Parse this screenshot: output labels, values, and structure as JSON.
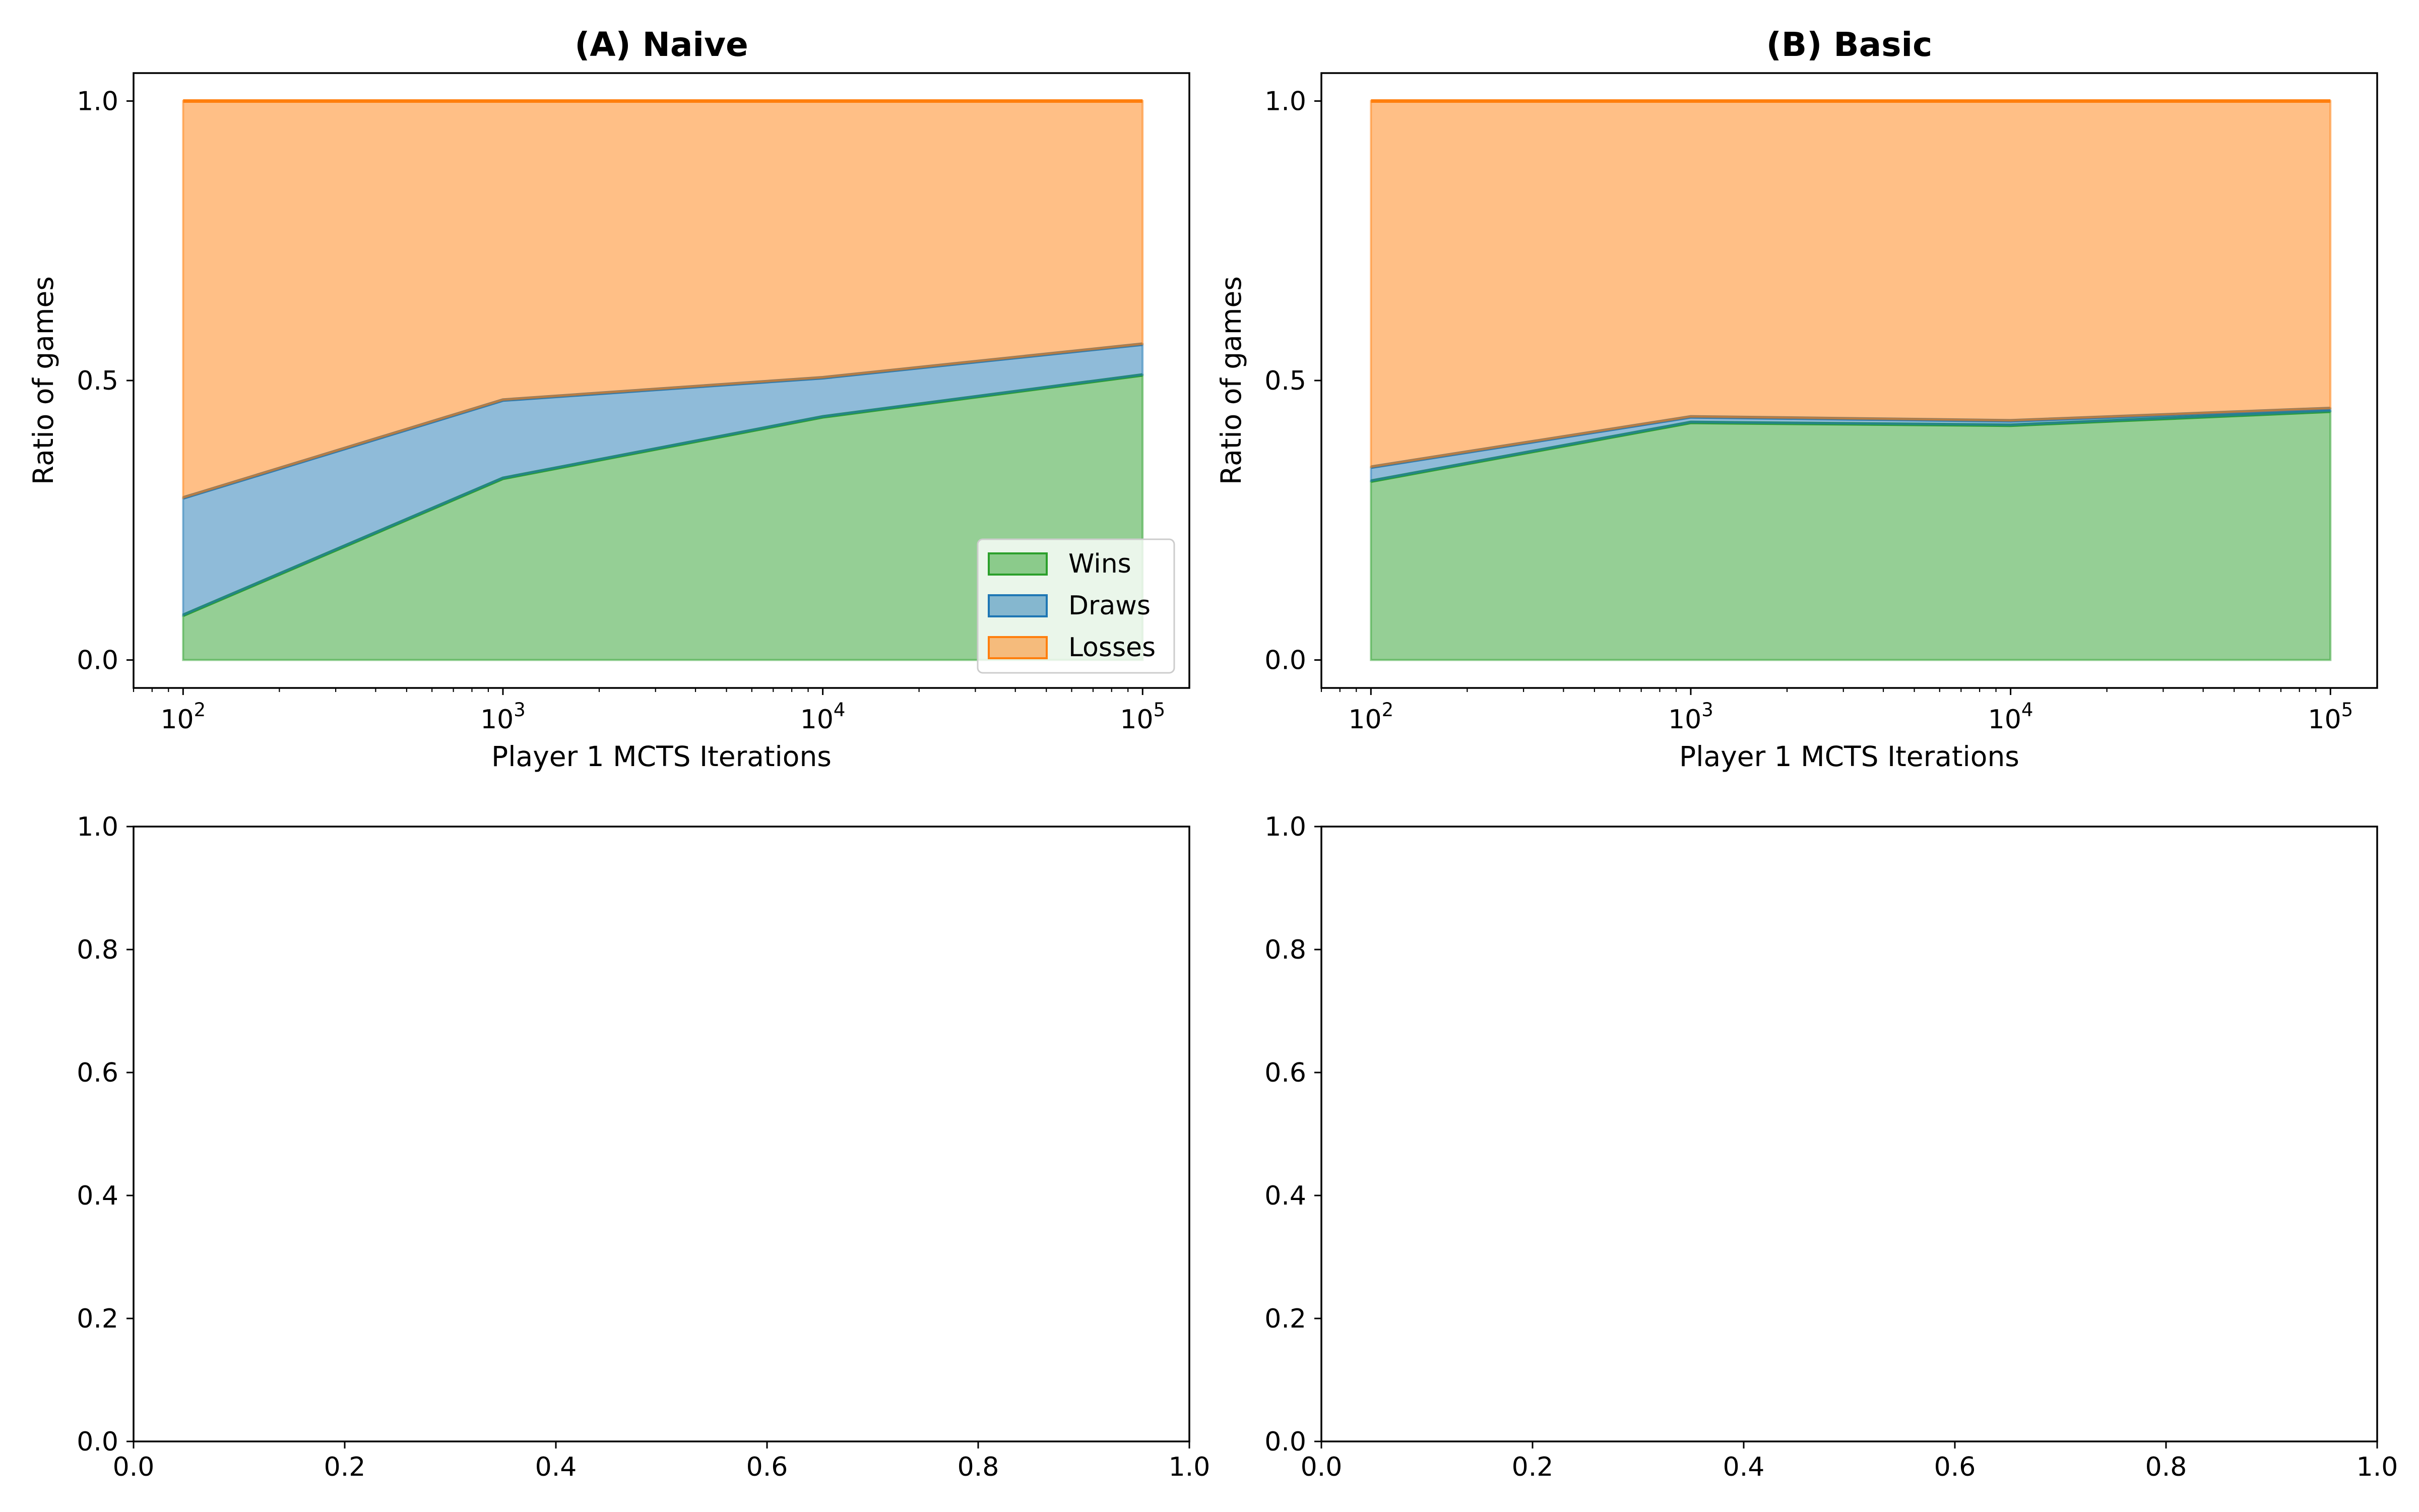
{
  "colors": {
    "wins": "#2ca02c",
    "draws": "#1f77b4",
    "losses": "#ff7f0e"
  },
  "chart_data": [
    {
      "type": "area",
      "title": "(A) Naive",
      "xlabel": "Player 1 MCTS Iterations",
      "ylabel": "Ratio of games",
      "xscale": "log",
      "xlim": [
        70,
        140000
      ],
      "ylim": [
        -0.05,
        1.05
      ],
      "x": [
        100,
        1000,
        10000,
        100000
      ],
      "x_tick_labels": [
        {
          "value": 100,
          "base": "10",
          "exp": "2"
        },
        {
          "value": 1000,
          "base": "10",
          "exp": "3"
        },
        {
          "value": 10000,
          "base": "10",
          "exp": "4"
        },
        {
          "value": 100000,
          "base": "10",
          "exp": "5"
        }
      ],
      "y_ticks": [
        0.0,
        0.5,
        1.0
      ],
      "y_tick_labels": [
        "0.0",
        "0.5",
        "1.0"
      ],
      "stacked": true,
      "series": [
        {
          "name": "Wins",
          "values": [
            0.08,
            0.325,
            0.435,
            0.51
          ]
        },
        {
          "name": "Draws",
          "values": [
            0.21,
            0.14,
            0.07,
            0.055
          ]
        },
        {
          "name": "Losses",
          "values": [
            0.71,
            0.535,
            0.495,
            0.435
          ]
        }
      ],
      "legend": {
        "location": "lower right",
        "entries": [
          "Wins",
          "Draws",
          "Losses"
        ]
      },
      "grid": false
    },
    {
      "type": "area",
      "title": "(B) Basic",
      "xlabel": "Player 1 MCTS Iterations",
      "ylabel": "Ratio of games",
      "xscale": "log",
      "xlim": [
        70,
        140000
      ],
      "ylim": [
        -0.05,
        1.05
      ],
      "x": [
        100,
        1000,
        10000,
        100000
      ],
      "x_tick_labels": [
        {
          "value": 100,
          "base": "10",
          "exp": "2"
        },
        {
          "value": 1000,
          "base": "10",
          "exp": "3"
        },
        {
          "value": 10000,
          "base": "10",
          "exp": "4"
        },
        {
          "value": 100000,
          "base": "10",
          "exp": "5"
        }
      ],
      "y_ticks": [
        0.0,
        0.5,
        1.0
      ],
      "y_tick_labels": [
        "0.0",
        "0.5",
        "1.0"
      ],
      "stacked": true,
      "series": [
        {
          "name": "Wins",
          "values": [
            0.32,
            0.425,
            0.42,
            0.445
          ]
        },
        {
          "name": "Draws",
          "values": [
            0.025,
            0.01,
            0.008,
            0.005
          ]
        },
        {
          "name": "Losses",
          "values": [
            0.655,
            0.565,
            0.572,
            0.55
          ]
        }
      ],
      "grid": false
    },
    {
      "type": "line",
      "title": "",
      "xlim": [
        0,
        1
      ],
      "ylim": [
        0,
        1
      ],
      "x_ticks": [
        0.0,
        0.2,
        0.4,
        0.6,
        0.8,
        1.0
      ],
      "x_tick_labels": [
        "0.0",
        "0.2",
        "0.4",
        "0.6",
        "0.8",
        "1.0"
      ],
      "y_ticks": [
        0.0,
        0.2,
        0.4,
        0.6,
        0.8,
        1.0
      ],
      "y_tick_labels": [
        "0.0",
        "0.2",
        "0.4",
        "0.6",
        "0.8",
        "1.0"
      ],
      "series": []
    },
    {
      "type": "line",
      "title": "",
      "xlim": [
        0,
        1
      ],
      "ylim": [
        0,
        1
      ],
      "x_ticks": [
        0.0,
        0.2,
        0.4,
        0.6,
        0.8,
        1.0
      ],
      "x_tick_labels": [
        "0.0",
        "0.2",
        "0.4",
        "0.6",
        "0.8",
        "1.0"
      ],
      "y_ticks": [
        0.0,
        0.2,
        0.4,
        0.6,
        0.8,
        1.0
      ],
      "y_tick_labels": [
        "0.0",
        "0.2",
        "0.4",
        "0.6",
        "0.8",
        "1.0"
      ],
      "series": []
    }
  ]
}
